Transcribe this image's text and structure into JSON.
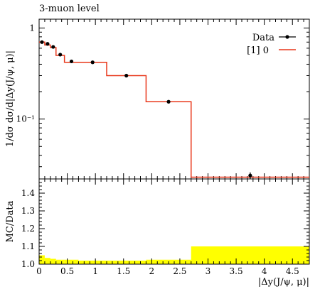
{
  "chart_data": [
    {
      "type": "line",
      "title": "3-muon level",
      "xlabel": "|Δy(J/ψ, μ)|",
      "ylabel": "1/dσ dσ/d|Δy(J/ψ, μ)|",
      "yscale": "log",
      "xlim": [
        0,
        4.8
      ],
      "ylim": [
        0.022,
        1.25
      ],
      "y_ticks": [
        0.1,
        1
      ],
      "y_tick_labels": [
        "10⁻¹",
        "1"
      ],
      "legend": {
        "placement": "top-right",
        "entries": [
          "Data",
          "[1] 0"
        ]
      },
      "bin_edges": [
        0,
        0.1,
        0.2,
        0.3,
        0.45,
        0.7,
        1.2,
        1.9,
        2.7,
        4.8
      ],
      "series": [
        {
          "name": "Data",
          "style": "points",
          "color": "#000000",
          "x": [
            0.05,
            0.15,
            0.25,
            0.375,
            0.575,
            0.95,
            1.55,
            2.3,
            3.75
          ],
          "y": [
            0.7,
            0.67,
            0.62,
            0.51,
            0.43,
            0.42,
            0.3,
            0.155,
            0.024
          ],
          "yerr": [
            0.015,
            0.015,
            0.014,
            0.012,
            0.01,
            0.008,
            0.006,
            0.004,
            0.002
          ]
        },
        {
          "name": "[1] 0",
          "style": "step",
          "color": "#e8371a",
          "values": [
            0.7,
            0.65,
            0.61,
            0.5,
            0.42,
            0.42,
            0.3,
            0.155,
            0.023
          ]
        }
      ]
    },
    {
      "type": "area",
      "ylabel": "MC/Data",
      "xlabel": "|Δy(J/ψ, μ)|",
      "xlim": [
        0,
        4.8
      ],
      "ylim": [
        1.0,
        1.48
      ],
      "x_ticks": [
        0,
        0.5,
        1,
        1.5,
        2,
        2.5,
        3,
        3.5,
        4,
        4.5
      ],
      "x_tick_labels": [
        "0",
        "0.5",
        "1",
        "1.5",
        "2",
        "2.5",
        "3",
        "3.5",
        "4",
        "4.5"
      ],
      "y_ticks": [
        1.0,
        1.1,
        1.2,
        1.3,
        1.4
      ],
      "y_tick_labels": [
        "1.0",
        "1.1",
        "1.2",
        "1.3",
        "1.4"
      ],
      "reference_line": 1.0,
      "band_color": "#ffff00",
      "bin_edges": [
        0,
        0.1,
        0.2,
        0.3,
        0.45,
        0.7,
        1.2,
        1.9,
        2.7,
        4.8
      ],
      "band_upper": [
        1.05,
        1.035,
        1.03,
        1.025,
        1.025,
        1.02,
        1.02,
        1.025,
        1.1
      ]
    }
  ]
}
